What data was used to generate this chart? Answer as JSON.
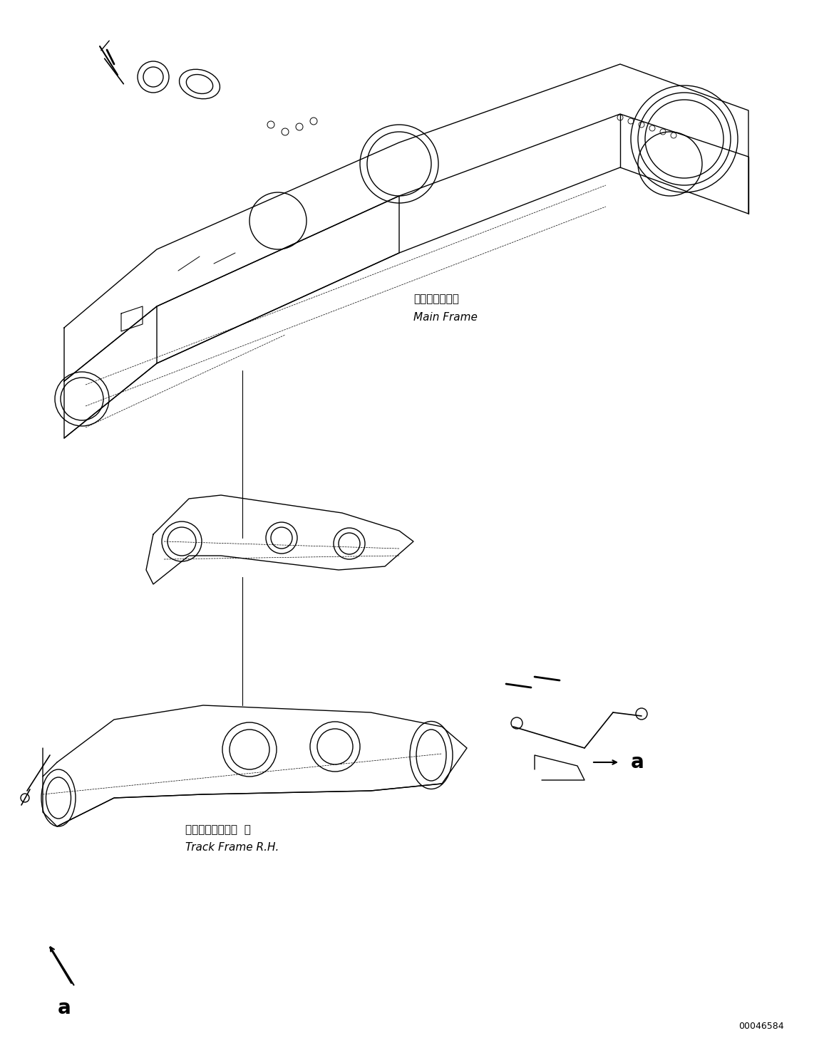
{
  "figure_width": 11.63,
  "figure_height": 14.57,
  "dpi": 100,
  "bg_color": "#ffffff",
  "line_color": "#000000",
  "label_main_frame_jp": "メインフレーム",
  "label_main_frame_en": "Main Frame",
  "label_track_frame_jp": "トラックフレーム  右",
  "label_track_frame_en": "Track Frame R.H.",
  "label_a": "a",
  "label_a2": "a",
  "doc_number": "00046584",
  "font_size_label": 11,
  "font_size_small": 9,
  "font_size_doc": 9
}
